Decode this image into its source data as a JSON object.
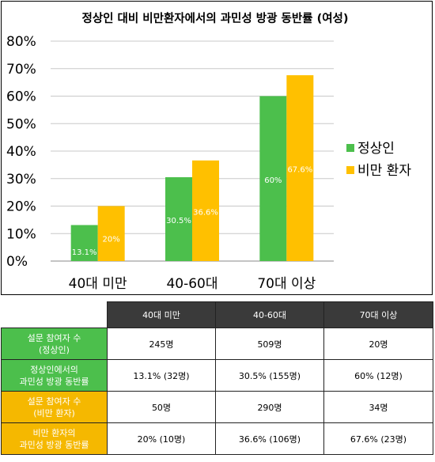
{
  "chart_data": {
    "type": "bar",
    "title": "정상인 대비 비만환자에서의 과민성 방광 동반률 (여성)",
    "categories": [
      "40대 미만",
      "40-60대",
      "70대 이상"
    ],
    "y_ticks": [
      "0%",
      "10%",
      "20%",
      "30%",
      "40%",
      "50%",
      "60%",
      "70%",
      "80%"
    ],
    "ylim": [
      0,
      80
    ],
    "grid": "horizontal",
    "legend_position": "right",
    "series": [
      {
        "name": "정상인",
        "color": "#4cbf4c",
        "values": [
          13.1,
          30.5,
          60
        ],
        "labels": [
          "13.1%",
          "30.5%",
          "60%"
        ]
      },
      {
        "name": "비만 환자",
        "color": "#ffc000",
        "values": [
          20,
          36.6,
          67.6
        ],
        "labels": [
          "20%",
          "36.6%",
          "67.6%"
        ]
      }
    ]
  },
  "table": {
    "columns": [
      "40대 미만",
      "40-60대",
      "70대 이상"
    ],
    "rows": [
      {
        "head_line1": "설문 참여자 수",
        "head_line2": "(정상인)",
        "color": "green",
        "cells": [
          "245명",
          "509명",
          "20명"
        ]
      },
      {
        "head_line1": "정상인에서의",
        "head_line2": "과민성 방광 동반률",
        "color": "green",
        "cells": [
          "13.1% (32명)",
          "30.5% (155명)",
          "60% (12명)"
        ]
      },
      {
        "head_line1": "설문 참여자 수",
        "head_line2": "(비만 환자)",
        "color": "orange",
        "cells": [
          "50명",
          "290명",
          "34명"
        ]
      },
      {
        "head_line1": "비만 환자의",
        "head_line2": "과민성 방광 동반률",
        "color": "orange",
        "cells": [
          "20% (10명)",
          "36.6% (106명)",
          "67.6% (23명)"
        ]
      }
    ]
  }
}
